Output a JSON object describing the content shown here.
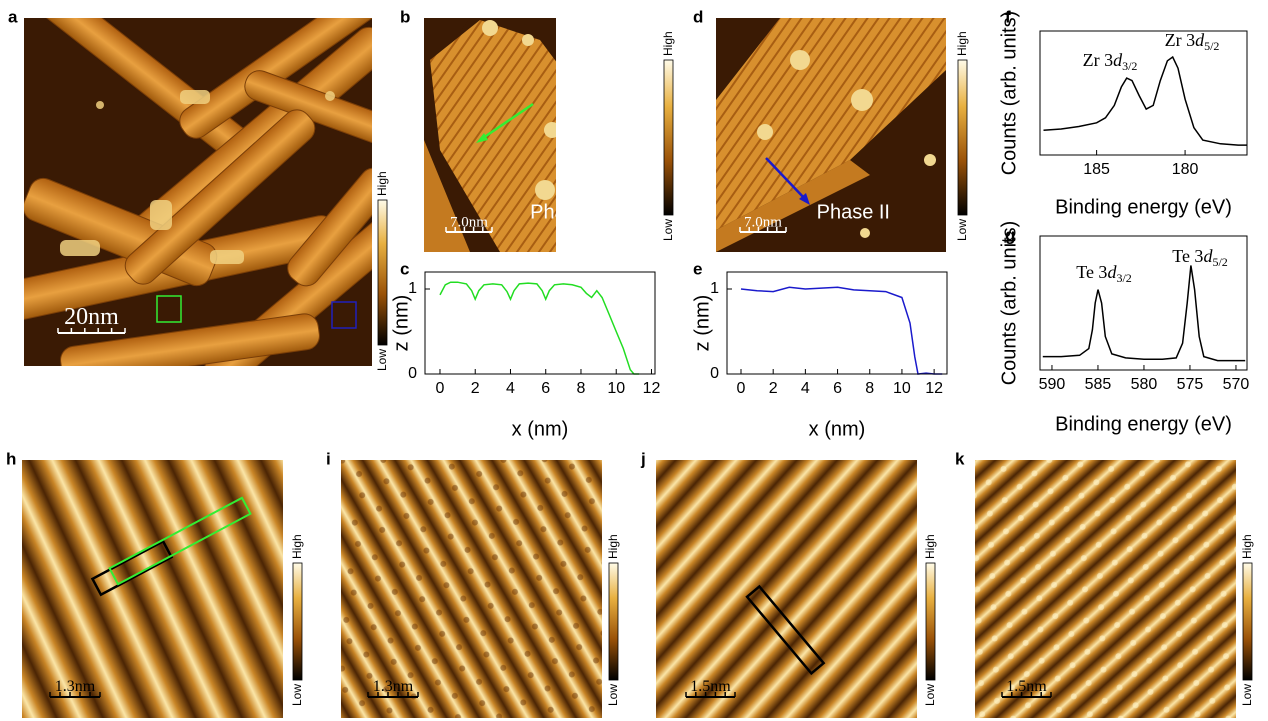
{
  "panel_labels": [
    "a",
    "b",
    "c",
    "d",
    "e",
    "f",
    "g",
    "h",
    "i",
    "j",
    "k"
  ],
  "images": [
    {
      "scale_bar": "20nm",
      "colorbar": {
        "high": "High",
        "low": "Low"
      }
    },
    {
      "scale_bar": "7.0nm",
      "phase": "Phase I",
      "colorbar": {
        "high": "High",
        "low": "Low"
      }
    },
    {
      "scale_bar": "7.0nm",
      "phase": "Phase II",
      "colorbar": {
        "high": "High",
        "low": "Low"
      }
    },
    {
      "scale_bar": "1.3nm",
      "colorbar": {
        "high": "High",
        "low": "Low"
      }
    },
    {
      "scale_bar": "1.3nm",
      "colorbar": {
        "high": "High",
        "low": "Low"
      }
    },
    {
      "scale_bar": "1.5nm",
      "colorbar": {
        "high": "High",
        "low": "Low"
      }
    },
    {
      "scale_bar": "1.5nm",
      "colorbar": {
        "high": "High",
        "low": "Low"
      }
    }
  ],
  "chart_data": [
    {
      "type": "line",
      "x_label": "x (nm)",
      "y_label": "z (nm)",
      "x": [
        0,
        0.3,
        0.6,
        1,
        1.5,
        1.8,
        2,
        2.2,
        2.5,
        3,
        3.5,
        3.8,
        4,
        4.2,
        4.5,
        5,
        5.5,
        5.8,
        6,
        6.2,
        6.5,
        7,
        7.5,
        8,
        8.3,
        8.6,
        8.9,
        9.2,
        9.6,
        10,
        10.4,
        10.8,
        11,
        11.3
      ],
      "series": [
        {
          "color": "#22dd22",
          "values": [
            0.93,
            1.05,
            1.08,
            1.08,
            1.06,
            0.98,
            0.88,
            0.98,
            1.05,
            1.06,
            1.05,
            0.97,
            0.88,
            0.98,
            1.06,
            1.07,
            1.06,
            0.98,
            0.88,
            0.98,
            1.05,
            1.06,
            1.05,
            1.02,
            0.95,
            0.9,
            0.98,
            0.9,
            0.7,
            0.5,
            0.3,
            0.05,
            0,
            0
          ]
        }
      ],
      "xlim": [
        -0.85,
        12.2
      ],
      "ylim": [
        0,
        1.2
      ],
      "xticks": [
        0,
        2,
        4,
        6,
        8,
        10,
        12
      ],
      "yticks": [
        0,
        1
      ]
    },
    {
      "type": "line",
      "x_label": "x (nm)",
      "y_label": "z (nm)",
      "x": [
        0,
        1,
        2,
        3,
        4,
        5,
        6,
        7,
        8,
        9,
        10,
        10.5,
        10.8,
        11,
        11.5,
        12,
        12.5
      ],
      "series": [
        {
          "color": "#1a1acc",
          "values": [
            1.0,
            0.98,
            0.97,
            1.02,
            1.0,
            1.01,
            1.02,
            0.99,
            0.98,
            0.97,
            0.9,
            0.6,
            0.2,
            0,
            0.01,
            0,
            0
          ]
        }
      ],
      "xlim": [
        -0.87,
        12.8
      ],
      "ylim": [
        0,
        1.2
      ],
      "xticks": [
        0,
        2,
        4,
        6,
        8,
        10,
        12
      ],
      "yticks": [
        0,
        1
      ]
    },
    {
      "type": "line",
      "x_label": "Binding energy (eV)",
      "y_label": "Counts (arb. units)",
      "x": [
        188,
        187,
        186,
        185,
        184.5,
        184,
        183.6,
        183.3,
        183,
        182.6,
        182.2,
        181.8,
        181.4,
        181,
        180.7,
        180.4,
        180,
        179.5,
        179,
        178,
        177,
        176.5
      ],
      "series": [
        {
          "color": "#000000",
          "values": [
            0.2,
            0.21,
            0.23,
            0.26,
            0.3,
            0.4,
            0.55,
            0.62,
            0.6,
            0.48,
            0.37,
            0.4,
            0.6,
            0.76,
            0.79,
            0.7,
            0.45,
            0.22,
            0.12,
            0.09,
            0.08,
            0.08
          ]
        }
      ],
      "xlim": [
        188.2,
        176.5
      ],
      "ylim": [
        0,
        1
      ],
      "xticks": [
        185,
        180
      ],
      "annotations": [
        {
          "element": "Zr 3",
          "orbital": "d",
          "subscript": "3/2"
        },
        {
          "element": "Zr 3",
          "orbital": "d",
          "subscript": "5/2"
        }
      ]
    },
    {
      "type": "line",
      "x_label": "Binding energy (eV)",
      "y_label": "Counts (arb. units)",
      "x": [
        591,
        589,
        587,
        586,
        585.6,
        585.3,
        585,
        584.6,
        584.2,
        583.5,
        582,
        580,
        578,
        576.5,
        575.8,
        575.3,
        574.9,
        574.5,
        574,
        573.5,
        572,
        570,
        569
      ],
      "series": [
        {
          "color": "#000000",
          "values": [
            0.1,
            0.1,
            0.11,
            0.16,
            0.3,
            0.5,
            0.6,
            0.5,
            0.25,
            0.12,
            0.09,
            0.08,
            0.08,
            0.09,
            0.2,
            0.5,
            0.78,
            0.6,
            0.25,
            0.1,
            0.07,
            0.07,
            0.07
          ]
        }
      ],
      "xlim": [
        591.3,
        568.8
      ],
      "ylim": [
        0,
        1
      ],
      "xticks": [
        590,
        585,
        580,
        575,
        570
      ],
      "annotations": [
        {
          "element": "Te 3",
          "orbital": "d",
          "subscript": "3/2"
        },
        {
          "element": "Te 3",
          "orbital": "d",
          "subscript": "5/2"
        }
      ]
    }
  ]
}
